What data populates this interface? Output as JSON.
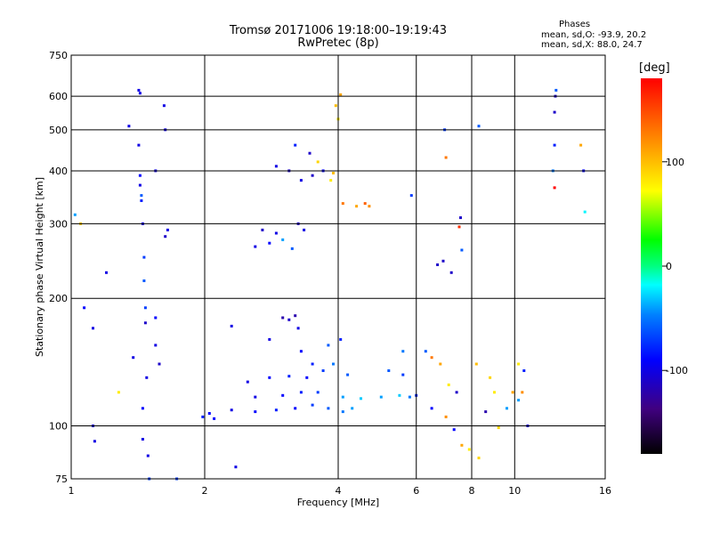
{
  "header": {
    "title": "Tromsø 20171006 19:18:00–19:19:43",
    "subtitle": "RwPretec (8p)",
    "phases": {
      "heading": "Phases",
      "line_o": "mean, sd,O: -93.9, 20.2",
      "line_x": "mean, sd,X:  88.0, 24.7"
    }
  },
  "colorbar": {
    "unit_label": "[deg]",
    "ticks": [
      "100",
      "0",
      "-100"
    ]
  },
  "chart_data": {
    "type": "scatter",
    "title": "Tromsø 20171006 19:18:00–19:19:43",
    "subtitle": "RwPretec (8p)",
    "xlabel": "Frequency [MHz]",
    "ylabel": "Stationary phase Virtual Height [km]",
    "xscale": "log",
    "yscale": "log",
    "xlim": [
      1,
      16
    ],
    "ylim": [
      75,
      750
    ],
    "xticks": [
      1,
      2,
      4,
      6,
      8,
      10,
      16
    ],
    "yticks": [
      75,
      100,
      200,
      300,
      400,
      500,
      600,
      750
    ],
    "grid": true,
    "color_value": "phase [deg]",
    "color_range": [
      -180,
      180
    ],
    "points": [
      [
        1.02,
        315,
        -40
      ],
      [
        1.05,
        300,
        95
      ],
      [
        1.07,
        190,
        -90
      ],
      [
        1.12,
        170,
        -100
      ],
      [
        1.12,
        100,
        -100
      ],
      [
        1.13,
        92,
        -100
      ],
      [
        1.2,
        230,
        -100
      ],
      [
        1.28,
        120,
        80
      ],
      [
        1.35,
        510,
        -100
      ],
      [
        1.38,
        145,
        -100
      ],
      [
        1.42,
        620,
        -100
      ],
      [
        1.43,
        610,
        -100
      ],
      [
        1.42,
        460,
        -100
      ],
      [
        1.43,
        390,
        -90
      ],
      [
        1.43,
        370,
        -100
      ],
      [
        1.44,
        350,
        -60
      ],
      [
        1.44,
        340,
        -80
      ],
      [
        1.45,
        300,
        -100
      ],
      [
        1.46,
        250,
        -70
      ],
      [
        1.46,
        220,
        -60
      ],
      [
        1.47,
        190,
        -70
      ],
      [
        1.47,
        175,
        -110
      ],
      [
        1.48,
        130,
        -100
      ],
      [
        1.45,
        110,
        -90
      ],
      [
        1.45,
        93,
        -100
      ],
      [
        1.49,
        85,
        -100
      ],
      [
        1.5,
        75,
        -70
      ],
      [
        1.55,
        400,
        -100
      ],
      [
        1.62,
        570,
        -100
      ],
      [
        1.63,
        500,
        -100
      ],
      [
        1.65,
        290,
        -100
      ],
      [
        1.63,
        280,
        -110
      ],
      [
        1.55,
        180,
        -90
      ],
      [
        1.55,
        155,
        -100
      ],
      [
        1.58,
        140,
        -110
      ],
      [
        1.73,
        75,
        -70
      ],
      [
        1.98,
        105,
        -80
      ],
      [
        2.05,
        107,
        -90
      ],
      [
        2.1,
        104,
        -90
      ],
      [
        2.3,
        172,
        -100
      ],
      [
        2.35,
        80,
        -100
      ],
      [
        2.6,
        265,
        -100
      ],
      [
        2.9,
        285,
        -100
      ],
      [
        2.7,
        290,
        -110
      ],
      [
        2.8,
        270,
        -90
      ],
      [
        3.0,
        275,
        -40
      ],
      [
        3.15,
        262,
        -60
      ],
      [
        3.35,
        290,
        -100
      ],
      [
        3.25,
        300,
        -110
      ],
      [
        2.9,
        410,
        -100
      ],
      [
        3.1,
        400,
        -110
      ],
      [
        3.3,
        380,
        -100
      ],
      [
        3.5,
        390,
        -110
      ],
      [
        3.7,
        400,
        -90
      ],
      [
        3.45,
        440,
        -110
      ],
      [
        3.2,
        460,
        -80
      ],
      [
        3.6,
        420,
        90
      ],
      [
        3.85,
        380,
        80
      ],
      [
        3.9,
        395,
        100
      ],
      [
        4.05,
        605,
        110
      ],
      [
        3.95,
        570,
        100
      ],
      [
        4.0,
        530,
        80
      ],
      [
        4.1,
        335,
        130
      ],
      [
        4.4,
        330,
        110
      ],
      [
        4.7,
        330,
        120
      ],
      [
        4.6,
        335,
        140
      ],
      [
        3.0,
        180,
        -120
      ],
      [
        3.1,
        178,
        -110
      ],
      [
        3.2,
        182,
        -120
      ],
      [
        2.8,
        160,
        -100
      ],
      [
        3.25,
        170,
        -100
      ],
      [
        3.3,
        150,
        -90
      ],
      [
        3.5,
        140,
        -80
      ],
      [
        3.8,
        155,
        -60
      ],
      [
        4.05,
        160,
        -80
      ],
      [
        2.5,
        127,
        -100
      ],
      [
        2.8,
        130,
        -90
      ],
      [
        3.1,
        131,
        -80
      ],
      [
        3.4,
        130,
        -90
      ],
      [
        3.7,
        135,
        -70
      ],
      [
        3.9,
        140,
        -50
      ],
      [
        4.2,
        132,
        -60
      ],
      [
        2.6,
        117,
        -100
      ],
      [
        3.0,
        118,
        -90
      ],
      [
        3.3,
        120,
        -80
      ],
      [
        3.6,
        120,
        -70
      ],
      [
        4.1,
        117,
        -40
      ],
      [
        4.5,
        116,
        -30
      ],
      [
        5.0,
        117,
        -40
      ],
      [
        5.5,
        118,
        -30
      ],
      [
        5.8,
        117,
        -50
      ],
      [
        2.3,
        109,
        -100
      ],
      [
        2.6,
        108,
        -90
      ],
      [
        2.9,
        109,
        -80
      ],
      [
        3.2,
        110,
        -90
      ],
      [
        3.5,
        112,
        -70
      ],
      [
        3.8,
        110,
        -60
      ],
      [
        4.1,
        108,
        -50
      ],
      [
        4.3,
        110,
        -40
      ],
      [
        5.2,
        135,
        -60
      ],
      [
        5.6,
        132,
        -70
      ],
      [
        6.3,
        150,
        -60
      ],
      [
        6.5,
        145,
        130
      ],
      [
        6.8,
        140,
        110
      ],
      [
        7.1,
        125,
        80
      ],
      [
        7.4,
        120,
        -110
      ],
      [
        6.5,
        110,
        -90
      ],
      [
        7.0,
        105,
        120
      ],
      [
        7.3,
        98,
        -90
      ],
      [
        7.6,
        90,
        110
      ],
      [
        7.9,
        88,
        80
      ],
      [
        8.3,
        84,
        90
      ],
      [
        8.2,
        140,
        100
      ],
      [
        8.8,
        130,
        90
      ],
      [
        9.0,
        120,
        80
      ],
      [
        8.6,
        108,
        -120
      ],
      [
        9.2,
        99,
        90
      ],
      [
        9.6,
        110,
        -40
      ],
      [
        9.9,
        120,
        110
      ],
      [
        10.2,
        115,
        -40
      ],
      [
        10.4,
        120,
        120
      ],
      [
        10.5,
        135,
        -80
      ],
      [
        10.2,
        140,
        80
      ],
      [
        10.7,
        100,
        -100
      ],
      [
        6.7,
        240,
        -110
      ],
      [
        6.9,
        245,
        -110
      ],
      [
        7.2,
        230,
        -110
      ],
      [
        7.0,
        430,
        130
      ],
      [
        6.95,
        500,
        -70
      ],
      [
        7.6,
        260,
        -60
      ],
      [
        7.5,
        295,
        160
      ],
      [
        7.55,
        310,
        -110
      ],
      [
        8.3,
        510,
        -60
      ],
      [
        12.4,
        620,
        -60
      ],
      [
        12.35,
        600,
        -110
      ],
      [
        12.3,
        550,
        -110
      ],
      [
        12.3,
        460,
        -80
      ],
      [
        12.3,
        365,
        200
      ],
      [
        12.2,
        400,
        -50
      ],
      [
        14.1,
        460,
        110
      ],
      [
        14.4,
        320,
        -20
      ],
      [
        14.3,
        400,
        -90
      ],
      [
        5.85,
        350,
        -70
      ],
      [
        5.6,
        150,
        -50
      ],
      [
        6.0,
        118,
        -80
      ]
    ]
  }
}
